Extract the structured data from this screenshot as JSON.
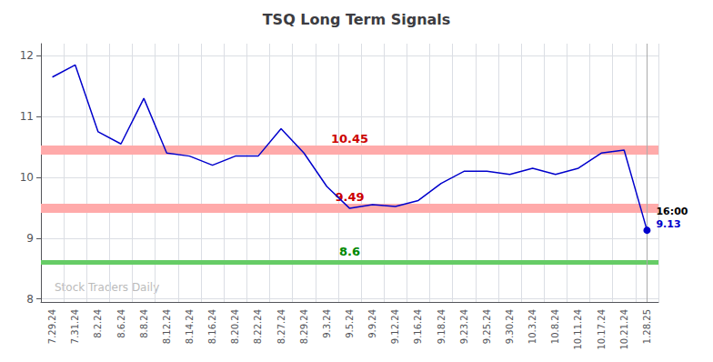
{
  "chart_data": {
    "type": "line",
    "title": "TSQ Long Term Signals",
    "categories": [
      "7.29.24",
      "7.31.24",
      "8.2.24",
      "8.6.24",
      "8.8.24",
      "8.12.24",
      "8.14.24",
      "8.16.24",
      "8.20.24",
      "8.22.24",
      "8.27.24",
      "8.29.24",
      "9.3.24",
      "9.5.24",
      "9.9.24",
      "9.12.24",
      "9.16.24",
      "9.18.24",
      "9.23.24",
      "9.25.24",
      "9.30.24",
      "10.3.24",
      "10.8.24",
      "10.11.24",
      "10.17.24",
      "10.21.24",
      "1.28.25"
    ],
    "values": [
      11.65,
      11.85,
      10.75,
      10.55,
      11.3,
      10.4,
      10.35,
      10.2,
      10.35,
      10.35,
      10.8,
      10.4,
      9.85,
      9.49,
      9.55,
      9.52,
      9.62,
      9.9,
      10.1,
      10.1,
      10.05,
      10.15,
      10.05,
      10.15,
      10.4,
      10.45,
      9.13
    ],
    "color": "#0000cc",
    "ylim": [
      7.95,
      12.2
    ],
    "yticks": [
      8,
      9,
      10,
      11,
      12
    ],
    "grid": true,
    "hlines": [
      {
        "value": 10.45,
        "label": "10.45",
        "color": "#ffaaaa",
        "label_color": "#cc0000"
      },
      {
        "value": 9.49,
        "label": "9.49",
        "color": "#ffaaaa",
        "label_color": "#cc0000"
      },
      {
        "value": 8.6,
        "label": "8.6",
        "color": "#66cc66",
        "label_color": "#008800"
      }
    ],
    "end_label": {
      "time": "16:00",
      "price": "9.13",
      "color": "#0000cc",
      "line_color": "#aaaaaa"
    },
    "watermark": {
      "text": "Stock Traders Daily",
      "color": "#bbbbbb"
    }
  }
}
